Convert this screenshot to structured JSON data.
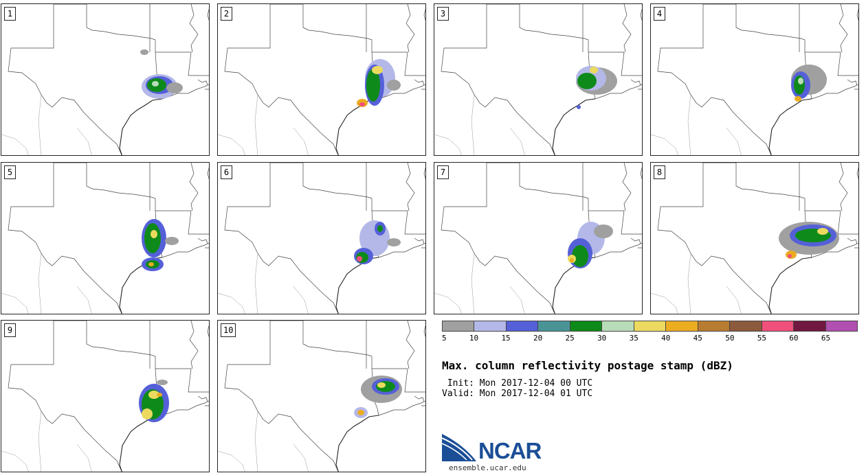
{
  "panels": [
    {
      "label": "1",
      "storm": "s1"
    },
    {
      "label": "2",
      "storm": "s2"
    },
    {
      "label": "3",
      "storm": "s3"
    },
    {
      "label": "4",
      "storm": "s4"
    },
    {
      "label": "5",
      "storm": "s5"
    },
    {
      "label": "6",
      "storm": "s6"
    },
    {
      "label": "7",
      "storm": "s7"
    },
    {
      "label": "8",
      "storm": "s8"
    },
    {
      "label": "9",
      "storm": "s9"
    },
    {
      "label": "10",
      "storm": "s10"
    }
  ],
  "colorbar": {
    "colors": [
      "#a0a0a0",
      "#b4b8e8",
      "#5560d8",
      "#4a9496",
      "#0e8a1a",
      "#b8dcb8",
      "#ecda60",
      "#ecac20",
      "#b87c30",
      "#8c5a3c",
      "#f0507c",
      "#701840",
      "#b050b0"
    ],
    "ticks": [
      "5",
      "10",
      "15",
      "20",
      "25",
      "30",
      "35",
      "40",
      "45",
      "50",
      "55",
      "60",
      "65"
    ]
  },
  "title": "Max. column reflectivity postage stamp (dBZ)",
  "init": " Init: Mon 2017-12-04 00 UTC",
  "valid": "Valid: Mon 2017-12-04 01 UTC",
  "logo": {
    "name": "NCAR",
    "url": "ensemble.ucar.edu"
  }
}
